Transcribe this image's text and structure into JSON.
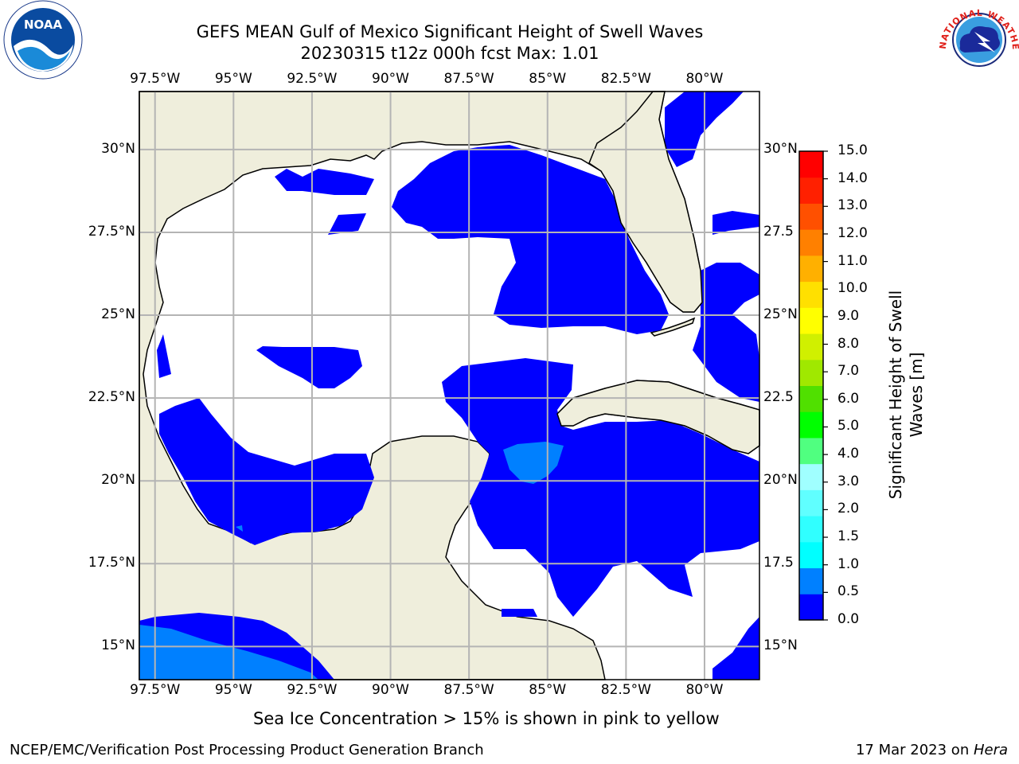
{
  "title": {
    "line1": "GEFS MEAN Gulf of Mexico Significant Height of Swell Waves",
    "line2": "20230315 t12z 000h fcst   Max: 1.01"
  },
  "map": {
    "lon_range": [
      -98,
      -78.25
    ],
    "lat_range": [
      14,
      31.75
    ],
    "lon_ticks": [
      {
        "value": -97.5,
        "label": "97.5°W"
      },
      {
        "value": -95,
        "label": "95°W"
      },
      {
        "value": -92.5,
        "label": "92.5°W"
      },
      {
        "value": -90,
        "label": "90°W"
      },
      {
        "value": -87.5,
        "label": "87.5°W"
      },
      {
        "value": -85,
        "label": "85°W"
      },
      {
        "value": -82.5,
        "label": "82.5°W"
      },
      {
        "value": -80,
        "label": "80°W"
      }
    ],
    "lat_ticks": [
      {
        "value": 30,
        "label": "30°N",
        "right_label": "30°N"
      },
      {
        "value": 27.5,
        "label": "27.5°N",
        "right_label": "27.5"
      },
      {
        "value": 25,
        "label": "25°N",
        "right_label": "25°N"
      },
      {
        "value": 22.5,
        "label": "22.5°N",
        "right_label": "22.5"
      },
      {
        "value": 20,
        "label": "20°N",
        "right_label": "20°N"
      },
      {
        "value": 17.5,
        "label": "17.5°N",
        "right_label": "17.5"
      },
      {
        "value": 15,
        "label": "15°N",
        "right_label": "15°N"
      }
    ],
    "land_color": "#efeedc",
    "ocean_color": "#ffffff",
    "grid_color": "#b4b4b4"
  },
  "colorbar": {
    "title_line1": "Significant Height of Swell",
    "title_line2": "Waves [m]",
    "ticks": [
      "0.0",
      "0.5",
      "1.0",
      "1.5",
      "2.0",
      "3.0",
      "4.0",
      "5.0",
      "6.0",
      "7.0",
      "8.0",
      "9.0",
      "10.0",
      "11.0",
      "12.0",
      "13.0",
      "14.0",
      "15.0"
    ],
    "colors": [
      "#0000ff",
      "#0080ff",
      "#00ffff",
      "#30ffff",
      "#60ffff",
      "#a0ffff",
      "#50ff80",
      "#00ff00",
      "#50e000",
      "#a0e800",
      "#d0f000",
      "#ffff00",
      "#ffe000",
      "#ffb000",
      "#ff8000",
      "#ff5000",
      "#ff2000",
      "#ff0000"
    ]
  },
  "caption": "Sea Ice Concentration > 15% is shown in pink to yellow",
  "footer": {
    "left": "NCEP/EMC/Verification Post Processing Product Generation Branch",
    "right_date": "17 Mar 2023 on ",
    "right_machine": "Hera"
  },
  "logos": {
    "noaa": "NOAA",
    "nws": "NATIONAL WEATHER SERVICE"
  }
}
